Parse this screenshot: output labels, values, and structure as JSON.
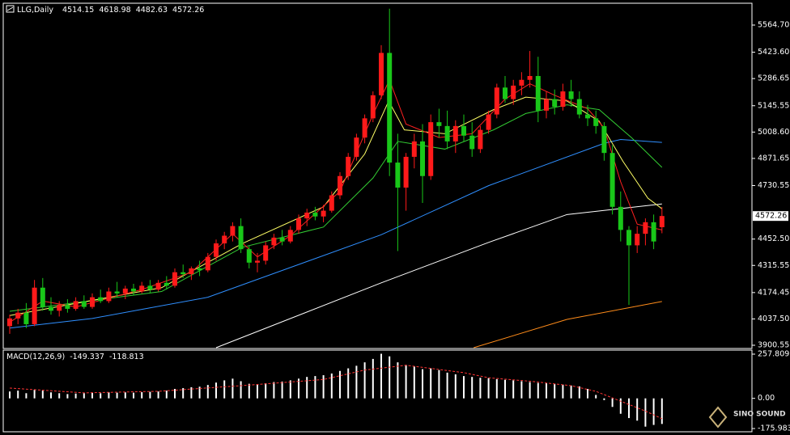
{
  "chart_data": {
    "type": "candlestick",
    "title": "LLG,Daily",
    "up_color": "#ff1a1a",
    "down_color": "#19c719",
    "ohlc": [
      [
        4000,
        4060,
        3960,
        4040
      ],
      [
        4040,
        4090,
        4010,
        4070
      ],
      [
        4070,
        4120,
        3990,
        4010
      ],
      [
        4010,
        4240,
        4000,
        4200
      ],
      [
        4200,
        4250,
        4080,
        4100
      ],
      [
        4100,
        4150,
        4060,
        4080
      ],
      [
        4080,
        4130,
        4050,
        4110
      ],
      [
        4110,
        4140,
        4070,
        4090
      ],
      [
        4090,
        4150,
        4080,
        4130
      ],
      [
        4130,
        4160,
        4090,
        4100
      ],
      [
        4100,
        4170,
        4090,
        4150
      ],
      [
        4150,
        4190,
        4120,
        4130
      ],
      [
        4130,
        4200,
        4120,
        4180
      ],
      [
        4180,
        4230,
        4150,
        4170
      ],
      [
        4170,
        4210,
        4140,
        4195
      ],
      [
        4195,
        4220,
        4160,
        4180
      ],
      [
        4180,
        4230,
        4170,
        4210
      ],
      [
        4210,
        4240,
        4170,
        4190
      ],
      [
        4190,
        4240,
        4180,
        4225
      ],
      [
        4225,
        4260,
        4190,
        4210
      ],
      [
        4210,
        4300,
        4200,
        4280
      ],
      [
        4280,
        4320,
        4250,
        4270
      ],
      [
        4270,
        4310,
        4240,
        4300
      ],
      [
        4300,
        4340,
        4260,
        4290
      ],
      [
        4290,
        4380,
        4280,
        4360
      ],
      [
        4360,
        4450,
        4340,
        4430
      ],
      [
        4430,
        4490,
        4400,
        4470
      ],
      [
        4470,
        4540,
        4440,
        4520
      ],
      [
        4520,
        4560,
        4380,
        4400
      ],
      [
        4400,
        4420,
        4300,
        4330
      ],
      [
        4330,
        4380,
        4280,
        4340
      ],
      [
        4340,
        4440,
        4320,
        4420
      ],
      [
        4420,
        4480,
        4400,
        4460
      ],
      [
        4460,
        4500,
        4420,
        4440
      ],
      [
        4440,
        4520,
        4430,
        4500
      ],
      [
        4500,
        4580,
        4480,
        4560
      ],
      [
        4560,
        4610,
        4520,
        4590
      ],
      [
        4590,
        4620,
        4550,
        4570
      ],
      [
        4570,
        4630,
        4540,
        4600
      ],
      [
        4600,
        4700,
        4590,
        4680
      ],
      [
        4680,
        4800,
        4660,
        4780
      ],
      [
        4780,
        4900,
        4760,
        4880
      ],
      [
        4880,
        5000,
        4860,
        4980
      ],
      [
        4980,
        5100,
        4950,
        5080
      ],
      [
        5080,
        5220,
        5060,
        5200
      ],
      [
        5200,
        5460,
        5180,
        5420
      ],
      [
        5420,
        5650,
        4780,
        4850
      ],
      [
        4850,
        5000,
        4390,
        4720
      ],
      [
        4720,
        4900,
        4600,
        4880
      ],
      [
        4880,
        5000,
        4820,
        4960
      ],
      [
        4960,
        5050,
        4640,
        4780
      ],
      [
        4780,
        5100,
        4760,
        5060
      ],
      [
        5060,
        5130,
        4980,
        5040
      ],
      [
        5040,
        5120,
        4920,
        4960
      ],
      [
        4960,
        5070,
        4900,
        5040
      ],
      [
        5040,
        5100,
        4960,
        4990
      ],
      [
        4990,
        5060,
        4880,
        4920
      ],
      [
        4920,
        5040,
        4900,
        5020
      ],
      [
        5020,
        5120,
        5000,
        5100
      ],
      [
        5100,
        5260,
        5080,
        5240
      ],
      [
        5240,
        5300,
        5160,
        5180
      ],
      [
        5180,
        5280,
        5150,
        5250
      ],
      [
        5250,
        5320,
        5200,
        5280
      ],
      [
        5280,
        5430,
        5240,
        5300
      ],
      [
        5300,
        5400,
        5060,
        5120
      ],
      [
        5120,
        5220,
        5080,
        5180
      ],
      [
        5180,
        5230,
        5100,
        5140
      ],
      [
        5140,
        5260,
        5120,
        5220
      ],
      [
        5220,
        5280,
        5140,
        5180
      ],
      [
        5180,
        5220,
        5080,
        5100
      ],
      [
        5100,
        5150,
        5040,
        5080
      ],
      [
        5080,
        5120,
        5000,
        5040
      ],
      [
        5040,
        5060,
        4860,
        4900
      ],
      [
        4900,
        4940,
        4580,
        4620
      ],
      [
        4620,
        4700,
        4440,
        4500
      ],
      [
        4500,
        4520,
        4110,
        4420
      ],
      [
        4420,
        4520,
        4380,
        4480
      ],
      [
        4480,
        4560,
        4420,
        4540
      ],
      [
        4540,
        4580,
        4400,
        4440
      ],
      [
        4514.15,
        4618.98,
        4482.63,
        4572.26
      ]
    ],
    "ylim": [
      3888,
      5674
    ],
    "yticks": [
      {
        "value": 5564.7,
        "label": "5564.70"
      },
      {
        "value": 5423.6,
        "label": "5423.60"
      },
      {
        "value": 5286.65,
        "label": "5286.65"
      },
      {
        "value": 5145.55,
        "label": "5145.55"
      },
      {
        "value": 5008.6,
        "label": "5008.60"
      },
      {
        "value": 4871.65,
        "label": "4871.65"
      },
      {
        "value": 4730.55,
        "label": "4730.55"
      },
      {
        "value": 4452.5,
        "label": "4452.50"
      },
      {
        "value": 4315.55,
        "label": "4315.55"
      },
      {
        "value": 4174.45,
        "label": "4174.45"
      },
      {
        "value": 4037.5,
        "label": "4037.50"
      },
      {
        "value": 3900.55,
        "label": "3900.55"
      }
    ],
    "moving_averages": [
      {
        "color": "#ff8c1a",
        "x": [
          56.2,
          67.5,
          79
        ],
        "values": [
          3888,
          4035,
          4128
        ]
      },
      {
        "color": "#ffffff",
        "x": [
          25,
          45,
          58,
          67.5,
          79
        ],
        "values": [
          3888,
          4225,
          4435,
          4580,
          4635
        ]
      },
      {
        "color": "#2f8fff",
        "x": [
          0,
          10,
          24,
          45,
          58,
          72,
          74,
          79
        ],
        "values": [
          3990,
          4040,
          4150,
          4475,
          4730,
          4950,
          4970,
          4955
        ]
      },
      {
        "color": "#33cc33",
        "x": [
          0,
          18.4,
          28.2,
          38,
          44,
          47,
          52.7,
          58.6,
          62.5,
          67.5,
          71.4,
          75.3,
          79
        ],
        "values": [
          4077,
          4180,
          4410,
          4515,
          4770,
          4960,
          4920,
          5020,
          5105,
          5150,
          5125,
          4980,
          4825
        ]
      },
      {
        "color": "#ffff66",
        "x": [
          0,
          18.4,
          28.2,
          38,
          43,
          45.9,
          47.8,
          52.7,
          58.6,
          62.5,
          67.5,
          71.4,
          74.3,
          77.3,
          79
        ],
        "values": [
          4055,
          4200,
          4430,
          4620,
          4895,
          5170,
          5020,
          5000,
          5125,
          5190,
          5170,
          5065,
          4855,
          4665,
          4610
        ]
      },
      {
        "color": "#ff2020",
        "x": [
          0,
          4,
          8,
          16,
          22,
          27,
          30,
          34,
          40,
          44,
          46,
          48,
          52,
          56,
          60,
          63,
          66,
          70,
          72,
          74,
          76,
          79
        ],
        "values": [
          4020,
          4130,
          4100,
          4190,
          4280,
          4480,
          4360,
          4470,
          4700,
          5100,
          5280,
          5050,
          4980,
          5000,
          5180,
          5260,
          5200,
          5130,
          5030,
          4750,
          4530,
          4500
        ]
      }
    ],
    "macd": {
      "title": "MACD(12,26,9)",
      "hist_color": "#ffffff",
      "histogram": [
        40,
        45,
        30,
        50,
        45,
        35,
        30,
        25,
        28,
        30,
        32,
        30,
        35,
        33,
        35,
        33,
        36,
        38,
        40,
        45,
        55,
        60,
        65,
        68,
        78,
        92,
        105,
        115,
        100,
        85,
        80,
        88,
        95,
        98,
        105,
        115,
        125,
        130,
        135,
        145,
        160,
        175,
        190,
        210,
        230,
        260,
        245,
        210,
        195,
        185,
        170,
        175,
        165,
        150,
        140,
        130,
        125,
        120,
        118,
        112,
        108,
        105,
        100,
        95,
        90,
        88,
        85,
        80,
        75,
        70,
        55,
        20,
        -10,
        -50,
        -90,
        -115,
        -130,
        -165,
        -155,
        -149.337
      ],
      "signal": {
        "color": "#ff3333",
        "x": [
          0,
          9,
          18,
          28,
          38,
          43,
          48,
          55,
          58,
          63,
          68,
          71,
          77,
          79
        ],
        "values": [
          60,
          32,
          41,
          74,
          110,
          165,
          193,
          150,
          120,
          100,
          74,
          41,
          -74,
          -118.813
        ]
      },
      "ylim": [
        -175.983,
        257.809
      ],
      "yticks": [
        257.809,
        {
          "value": 0,
          "label": "0.00"
        },
        -175.983
      ]
    }
  },
  "logo": {
    "text": "SINO SOUND"
  }
}
